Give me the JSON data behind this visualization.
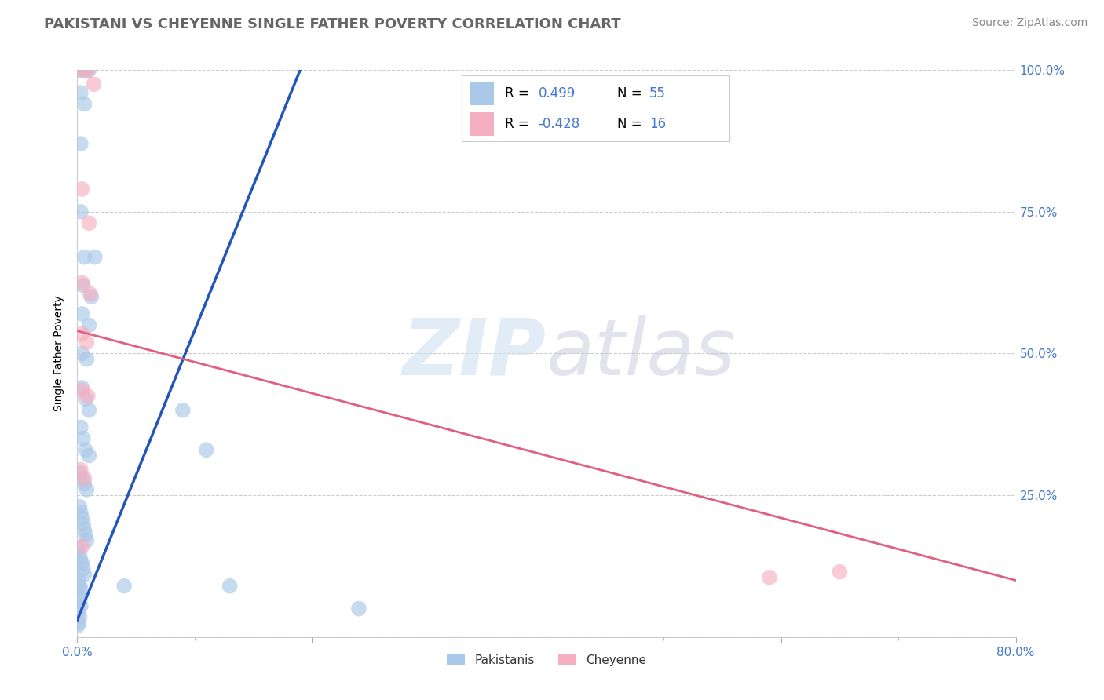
{
  "title": "PAKISTANI VS CHEYENNE SINGLE FATHER POVERTY CORRELATION CHART",
  "source": "Source: ZipAtlas.com",
  "ylabel": "Single Father Poverty",
  "xlim": [
    0.0,
    0.8
  ],
  "ylim": [
    0.0,
    1.0
  ],
  "pakistani_color": "#aac8e8",
  "cheyenne_color": "#f5afc0",
  "line_blue": "#2255bb",
  "line_pink": "#e06080",
  "pakistani_points": [
    [
      0.0,
      1.0
    ],
    [
      0.004,
      1.0
    ],
    [
      0.007,
      1.0
    ],
    [
      0.01,
      1.0
    ],
    [
      0.003,
      0.96
    ],
    [
      0.006,
      0.94
    ],
    [
      0.003,
      0.87
    ],
    [
      0.003,
      0.75
    ],
    [
      0.006,
      0.67
    ],
    [
      0.015,
      0.67
    ],
    [
      0.005,
      0.62
    ],
    [
      0.012,
      0.6
    ],
    [
      0.004,
      0.57
    ],
    [
      0.01,
      0.55
    ],
    [
      0.004,
      0.5
    ],
    [
      0.008,
      0.49
    ],
    [
      0.004,
      0.44
    ],
    [
      0.007,
      0.42
    ],
    [
      0.01,
      0.4
    ],
    [
      0.003,
      0.37
    ],
    [
      0.005,
      0.35
    ],
    [
      0.007,
      0.33
    ],
    [
      0.01,
      0.32
    ],
    [
      0.002,
      0.29
    ],
    [
      0.004,
      0.28
    ],
    [
      0.006,
      0.27
    ],
    [
      0.008,
      0.26
    ],
    [
      0.002,
      0.23
    ],
    [
      0.003,
      0.22
    ],
    [
      0.004,
      0.21
    ],
    [
      0.005,
      0.2
    ],
    [
      0.006,
      0.19
    ],
    [
      0.007,
      0.18
    ],
    [
      0.008,
      0.17
    ],
    [
      0.001,
      0.155
    ],
    [
      0.002,
      0.145
    ],
    [
      0.003,
      0.135
    ],
    [
      0.004,
      0.13
    ],
    [
      0.005,
      0.12
    ],
    [
      0.006,
      0.11
    ],
    [
      0.001,
      0.1
    ],
    [
      0.002,
      0.09
    ],
    [
      0.003,
      0.085
    ],
    [
      0.001,
      0.075
    ],
    [
      0.002,
      0.065
    ],
    [
      0.003,
      0.055
    ],
    [
      0.001,
      0.045
    ],
    [
      0.002,
      0.035
    ],
    [
      0.001,
      0.025
    ],
    [
      0.0005,
      0.02
    ],
    [
      0.09,
      0.4
    ],
    [
      0.11,
      0.33
    ],
    [
      0.04,
      0.09
    ],
    [
      0.13,
      0.09
    ],
    [
      0.24,
      0.05
    ]
  ],
  "cheyenne_points": [
    [
      0.004,
      1.0
    ],
    [
      0.009,
      1.0
    ],
    [
      0.014,
      0.975
    ],
    [
      0.004,
      0.79
    ],
    [
      0.01,
      0.73
    ],
    [
      0.004,
      0.625
    ],
    [
      0.011,
      0.605
    ],
    [
      0.004,
      0.535
    ],
    [
      0.008,
      0.52
    ],
    [
      0.004,
      0.435
    ],
    [
      0.009,
      0.425
    ],
    [
      0.003,
      0.295
    ],
    [
      0.006,
      0.28
    ],
    [
      0.59,
      0.105
    ],
    [
      0.65,
      0.115
    ],
    [
      0.004,
      0.16
    ]
  ],
  "blue_line_x": [
    0.0,
    0.19
  ],
  "blue_line_y": [
    0.03,
    1.0
  ],
  "pink_line_x": [
    0.0,
    0.8
  ],
  "pink_line_y": [
    0.54,
    0.1
  ],
  "title_fontsize": 13,
  "label_fontsize": 10,
  "tick_fontsize": 11,
  "source_fontsize": 10
}
